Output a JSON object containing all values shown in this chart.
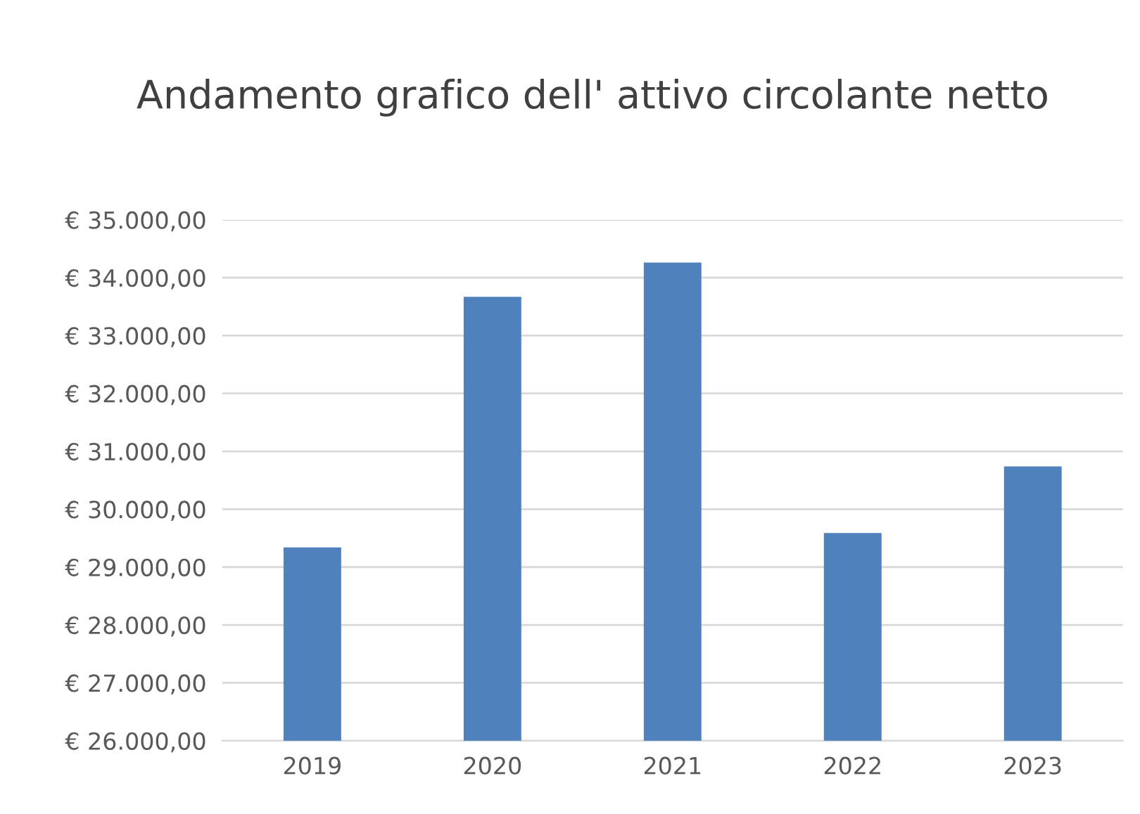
{
  "chart_data": {
    "type": "bar",
    "title": "Andamento grafico dell' attivo circolante netto",
    "categories": [
      "2019",
      "2020",
      "2021",
      "2022",
      "2023"
    ],
    "values": [
      29340,
      33670,
      34260,
      29590,
      30740
    ],
    "color": "#4f81bd",
    "ylim": [
      26000,
      35000
    ],
    "yticks": [
      {
        "value": 26000,
        "label": "€ 26.000,00"
      },
      {
        "value": 27000,
        "label": "€ 27.000,00"
      },
      {
        "value": 28000,
        "label": "€ 28.000,00"
      },
      {
        "value": 29000,
        "label": "€ 29.000,00"
      },
      {
        "value": 30000,
        "label": "€ 30.000,00"
      },
      {
        "value": 31000,
        "label": "€ 31.000,00"
      },
      {
        "value": 32000,
        "label": "€ 32.000,00"
      },
      {
        "value": 33000,
        "label": "€ 33.000,00"
      },
      {
        "value": 34000,
        "label": "€ 34.000,00"
      },
      {
        "value": 35000,
        "label": "€ 35.000,00"
      }
    ],
    "grid": "y"
  }
}
